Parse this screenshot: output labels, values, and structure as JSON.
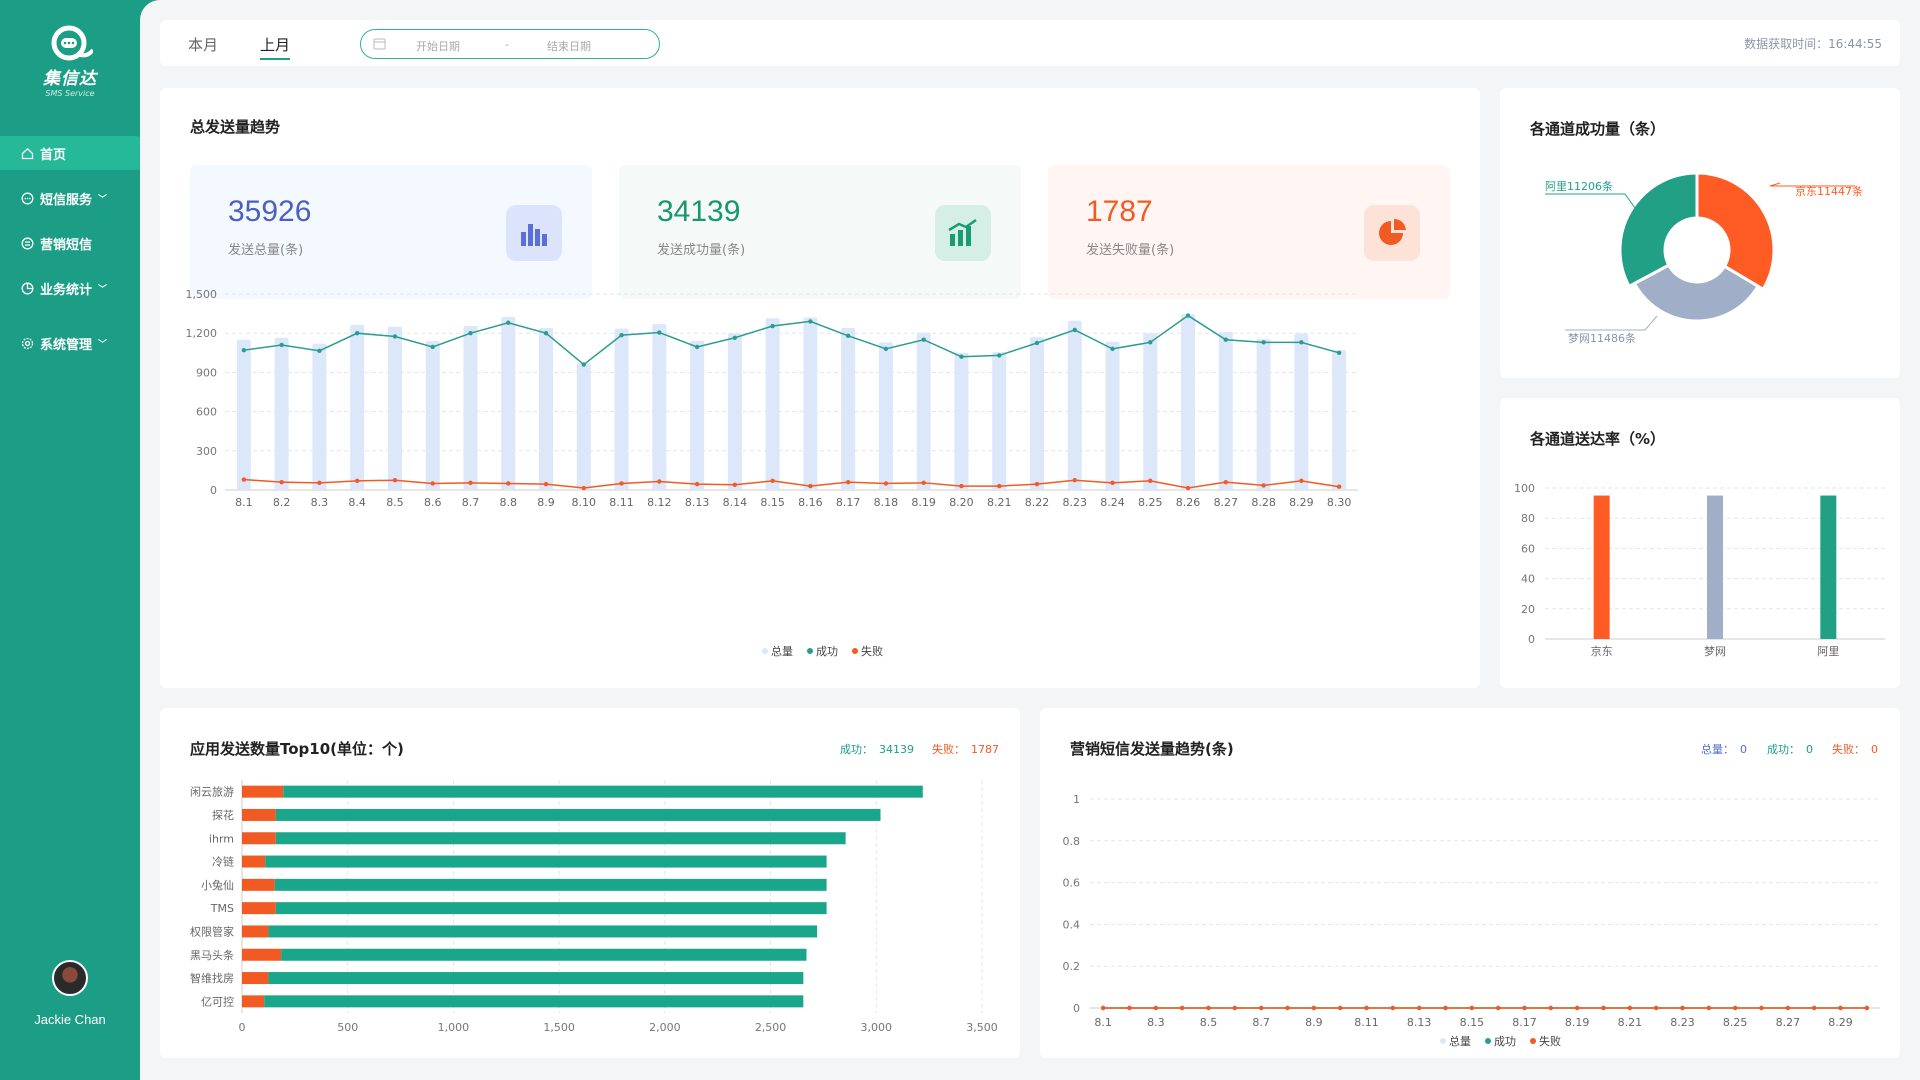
{
  "app": {
    "logo_text": "集信达",
    "logo_sub": "SMS Service"
  },
  "sidebar": {
    "items": [
      {
        "label": "首页",
        "icon": "home-icon",
        "active": true,
        "chevron": false
      },
      {
        "label": "短信服务",
        "icon": "message-icon",
        "active": false,
        "chevron": true
      },
      {
        "label": "营销短信",
        "icon": "marketing-icon",
        "active": false,
        "chevron": false
      },
      {
        "label": "业务统计",
        "icon": "pie-chart-icon",
        "active": false,
        "chevron": true
      },
      {
        "label": "系统管理",
        "icon": "gear-icon",
        "active": false,
        "chevron": true
      }
    ],
    "user_name": "Jackie Chan"
  },
  "topbar": {
    "tabs": [
      "本月",
      "上月"
    ],
    "active_tab": "上月",
    "start_placeholder": "开始日期",
    "end_placeholder": "结束日期",
    "range_separator": "-",
    "fetch_label": "数据获取时间：",
    "fetch_time": "16:44:55"
  },
  "trend": {
    "title": "总发送量趋势",
    "stats": [
      {
        "value": "35926",
        "label": "发送总量(条)",
        "color": "#4a5fc1"
      },
      {
        "value": "34139",
        "label": "发送成功量(条)",
        "color": "#17976f"
      },
      {
        "value": "1787",
        "label": "发送失败量(条)",
        "color": "#f25a23"
      }
    ]
  },
  "channel_success": {
    "title": "各通道成功量（条）"
  },
  "channel_rate": {
    "title": "各通道送达率（%）"
  },
  "top10": {
    "title": "应用发送数量Top10(单位：个)",
    "success_label": "成功：",
    "success_value": "34139",
    "fail_label": "失败：",
    "fail_value": "1787"
  },
  "marketing": {
    "title": "营销短信发送量趋势(条)",
    "total_label": "总量：",
    "total_value": "0",
    "success_label": "成功：",
    "success_value": "0",
    "fail_label": "失败：",
    "fail_value": "0"
  },
  "colors": {
    "brand": "#1b9e85",
    "success": "#2a9d8f",
    "fail": "#f25a23",
    "total": "#dce7fa",
    "gray": "#a0aec8"
  },
  "chart_data": [
    {
      "type": "bar",
      "subtype": "bar+line",
      "categories": [
        "8.1",
        "8.2",
        "8.3",
        "8.4",
        "8.5",
        "8.6",
        "8.7",
        "8.8",
        "8.9",
        "8.10",
        "8.11",
        "8.12",
        "8.13",
        "8.14",
        "8.15",
        "8.16",
        "8.17",
        "8.18",
        "8.19",
        "8.20",
        "8.21",
        "8.22",
        "8.23",
        "8.24",
        "8.25",
        "8.26",
        "8.27",
        "8.28",
        "8.29",
        "8.30"
      ],
      "series": [
        {
          "name": "总量",
          "kind": "bar",
          "values": [
            1150,
            1165,
            1120,
            1265,
            1250,
            1140,
            1255,
            1325,
            1240,
            970,
            1235,
            1270,
            1140,
            1200,
            1315,
            1320,
            1240,
            1130,
            1205,
            1050,
            1055,
            1170,
            1295,
            1135,
            1200,
            1345,
            1210,
            1155,
            1200,
            1070
          ]
        },
        {
          "name": "成功",
          "kind": "line",
          "values": [
            1070,
            1110,
            1065,
            1200,
            1175,
            1095,
            1200,
            1280,
            1200,
            960,
            1185,
            1205,
            1095,
            1165,
            1255,
            1290,
            1180,
            1080,
            1150,
            1020,
            1030,
            1125,
            1225,
            1080,
            1130,
            1335,
            1150,
            1130,
            1130,
            1050
          ]
        },
        {
          "name": "失败",
          "kind": "line",
          "values": [
            80,
            60,
            55,
            70,
            75,
            50,
            55,
            50,
            45,
            15,
            50,
            65,
            45,
            40,
            70,
            30,
            60,
            50,
            55,
            30,
            30,
            45,
            75,
            55,
            70,
            15,
            60,
            35,
            70,
            25
          ]
        }
      ],
      "ylim": [
        0,
        1500
      ],
      "yticks": [
        0,
        300,
        600,
        900,
        1200,
        1500
      ],
      "yticklabels": [
        "0",
        "300",
        "600",
        "900",
        "1,200",
        "1,500"
      ],
      "legend_position": "bottom",
      "grid": true
    },
    {
      "type": "pie",
      "subtype": "donut",
      "categories": [
        "京东",
        "梦网",
        "阿里"
      ],
      "values": [
        11447,
        11486,
        11206
      ],
      "labels": [
        "京东11447条",
        "梦网11486条",
        "阿里11206条"
      ],
      "colors": [
        "#ff5b24",
        "#a0aec8",
        "#22a085"
      ]
    },
    {
      "type": "bar",
      "categories": [
        "京东",
        "梦网",
        "阿里"
      ],
      "values": [
        95,
        95,
        95
      ],
      "colors": [
        "#ff5b24",
        "#a0aec8",
        "#22a085"
      ],
      "ylim": [
        0,
        100
      ],
      "yticks": [
        0,
        20,
        40,
        60,
        80,
        100
      ],
      "grid": true
    },
    {
      "type": "bar",
      "subtype": "horizontal-stacked",
      "categories": [
        "闲云旅游",
        "探花",
        "ihrm",
        "冷链",
        "小兔仙",
        "TMS",
        "权限管家",
        "黑马头条",
        "智维找房",
        "亿可控"
      ],
      "series": [
        {
          "name": "失败",
          "values": [
            195,
            160,
            160,
            110,
            155,
            160,
            125,
            185,
            125,
            105
          ]
        },
        {
          "name": "成功",
          "values": [
            3025,
            2860,
            2695,
            2655,
            2610,
            2605,
            2595,
            2485,
            2530,
            2550
          ]
        }
      ],
      "xlim": [
        0,
        3500
      ],
      "xticks": [
        0,
        500,
        1000,
        1500,
        2000,
        2500,
        3000,
        3500
      ],
      "xticklabels": [
        "0",
        "500",
        "1,000",
        "1,500",
        "2,000",
        "2,500",
        "3,000",
        "3,500"
      ],
      "grid": true
    },
    {
      "type": "line",
      "x": [
        "8.1",
        "8.2",
        "8.3",
        "8.4",
        "8.5",
        "8.6",
        "8.7",
        "8.8",
        "8.9",
        "8.10",
        "8.11",
        "8.12",
        "8.13",
        "8.14",
        "8.15",
        "8.16",
        "8.17",
        "8.18",
        "8.19",
        "8.20",
        "8.21",
        "8.22",
        "8.23",
        "8.24",
        "8.25",
        "8.26",
        "8.27",
        "8.28",
        "8.29",
        "8.30"
      ],
      "xticklabels": [
        "8.1",
        "8.3",
        "8.5",
        "8.7",
        "8.9",
        "8.11",
        "8.13",
        "8.15",
        "8.17",
        "8.19",
        "8.21",
        "8.23",
        "8.25",
        "8.27",
        "8.29"
      ],
      "series": [
        {
          "name": "总量",
          "values": [
            0,
            0,
            0,
            0,
            0,
            0,
            0,
            0,
            0,
            0,
            0,
            0,
            0,
            0,
            0,
            0,
            0,
            0,
            0,
            0,
            0,
            0,
            0,
            0,
            0,
            0,
            0,
            0,
            0,
            0
          ]
        },
        {
          "name": "成功",
          "values": [
            0,
            0,
            0,
            0,
            0,
            0,
            0,
            0,
            0,
            0,
            0,
            0,
            0,
            0,
            0,
            0,
            0,
            0,
            0,
            0,
            0,
            0,
            0,
            0,
            0,
            0,
            0,
            0,
            0,
            0
          ]
        },
        {
          "name": "失败",
          "values": [
            0,
            0,
            0,
            0,
            0,
            0,
            0,
            0,
            0,
            0,
            0,
            0,
            0,
            0,
            0,
            0,
            0,
            0,
            0,
            0,
            0,
            0,
            0,
            0,
            0,
            0,
            0,
            0,
            0,
            0
          ]
        }
      ],
      "ylim": [
        0,
        1
      ],
      "yticks": [
        0,
        0.2,
        0.4,
        0.6,
        0.8,
        1
      ],
      "legend_position": "bottom",
      "grid": true
    }
  ]
}
